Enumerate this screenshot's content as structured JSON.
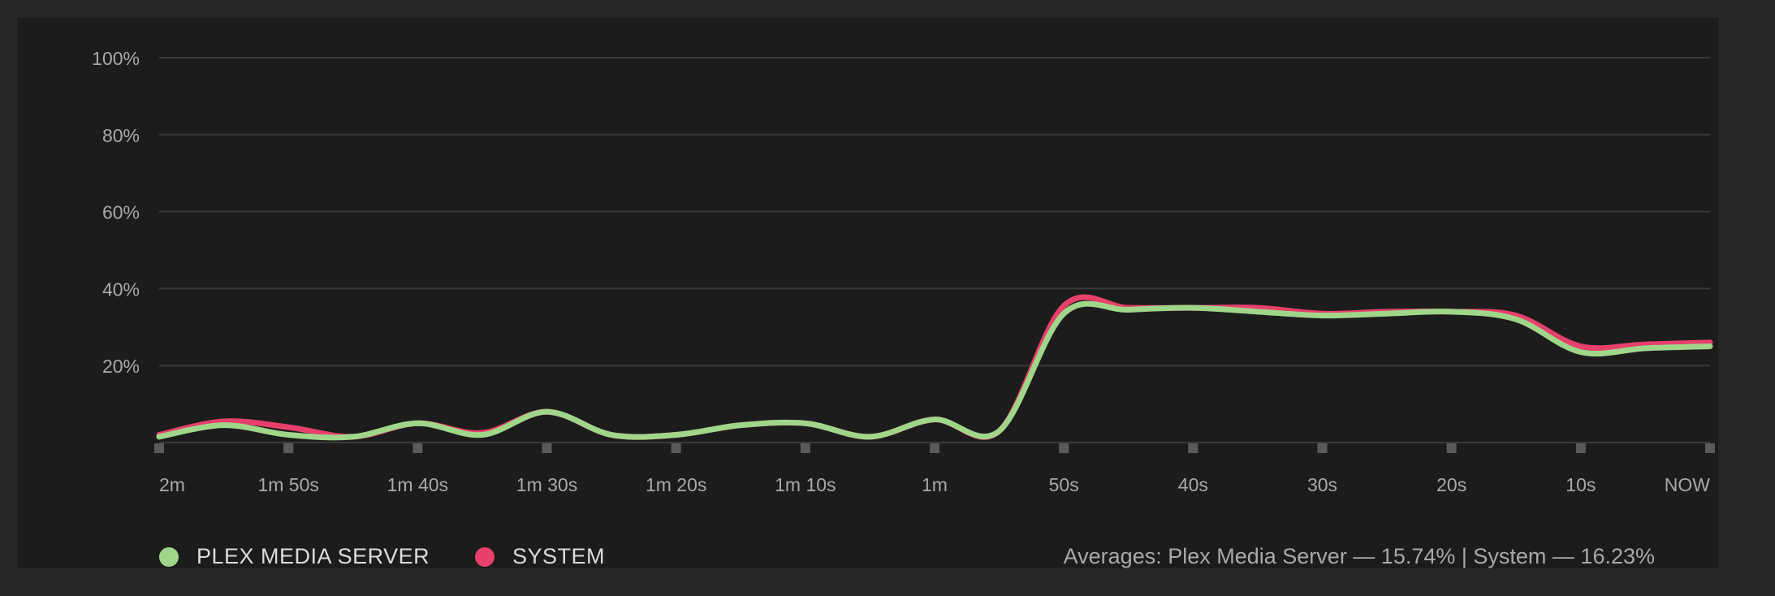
{
  "colors": {
    "background": "#262626",
    "panel": "#1c1c1c",
    "grid": "#3a3a3a",
    "axis_text": "#a9a9a9",
    "tick_mark": "#5a5a5a",
    "plex": "#a0d68a",
    "system": "#e6406b"
  },
  "chart_data": {
    "type": "line",
    "y_ticks": [
      "100%",
      "80%",
      "60%",
      "40%",
      "20%"
    ],
    "y_tick_values": [
      100,
      80,
      60,
      40,
      20
    ],
    "ylim": [
      0,
      100
    ],
    "x_ticks": [
      "2m",
      "1m 50s",
      "1m 40s",
      "1m 30s",
      "1m 20s",
      "1m 10s",
      "1m",
      "50s",
      "40s",
      "30s",
      "20s",
      "10s",
      "NOW"
    ],
    "x_tick_values": [
      -120,
      -110,
      -100,
      -90,
      -80,
      -70,
      -60,
      -50,
      -40,
      -30,
      -20,
      -10,
      0
    ],
    "xlim": [
      -120,
      0
    ],
    "grid": true,
    "legend_position": "bottom-left",
    "series": [
      {
        "name": "SYSTEM",
        "color": "#e6406b",
        "x": [
          -120,
          -115,
          -110,
          -105,
          -100,
          -95,
          -90,
          -85,
          -80,
          -75,
          -70,
          -65,
          -60,
          -55,
          -50,
          -45,
          -40,
          -35,
          -30,
          -25,
          -20,
          -15,
          -10,
          -5,
          0
        ],
        "values": [
          2,
          5.5,
          4,
          1.5,
          5,
          2.5,
          8,
          2,
          2,
          4.5,
          5,
          1.5,
          6,
          3,
          35.5,
          35,
          35,
          35,
          33.5,
          34,
          34,
          33,
          25,
          25.5,
          26
        ]
      },
      {
        "name": "PLEX MEDIA SERVER",
        "color": "#a0d68a",
        "x": [
          -120,
          -115,
          -110,
          -105,
          -100,
          -95,
          -90,
          -85,
          -80,
          -75,
          -70,
          -65,
          -60,
          -55,
          -50,
          -45,
          -40,
          -35,
          -30,
          -25,
          -20,
          -15,
          -10,
          -5,
          0
        ],
        "values": [
          1.5,
          4.5,
          2,
          1.5,
          5,
          2,
          8,
          2,
          2,
          4.5,
          5,
          1.5,
          6,
          3,
          33.5,
          34.5,
          35,
          34,
          33,
          33.5,
          34,
          32,
          23.5,
          24.5,
          25
        ]
      }
    ]
  },
  "legend": {
    "plex_label": "PLEX MEDIA SERVER",
    "system_label": "SYSTEM"
  },
  "averages": {
    "text": "Averages: Plex Media Server — 15.74% | System — 16.23%"
  }
}
